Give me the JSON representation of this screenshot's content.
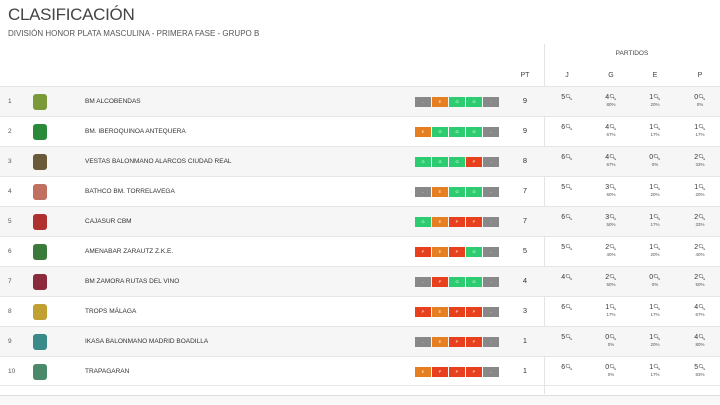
{
  "title": "CLASIFICACIÓN",
  "subtitle": "DIVISIÓN HONOR PLATA MASCULINA - PRIMERA FASE - GRUPO B",
  "headers": {
    "partidos": "PARTIDOS",
    "pt": "PT",
    "j": "J",
    "g": "G",
    "e": "E",
    "p": "P"
  },
  "colors": {
    "G": "#2ecc71",
    "E": "#e67e22",
    "P": "#e8401c",
    "-": "#888888"
  },
  "rows": [
    {
      "pos": "1",
      "team": "BM ALCOBENDAS",
      "form": [
        "-",
        "E",
        "G",
        "G",
        "-"
      ],
      "pt": "9",
      "j": "5",
      "g": "4",
      "gp": "80%",
      "e": "1",
      "ep": "20%",
      "p": "0",
      "pp": "0%",
      "logo": "#7a9a3a"
    },
    {
      "pos": "2",
      "team": "BM. IBEROQUINOA ANTEQUERA",
      "form": [
        "E",
        "G",
        "G",
        "G",
        "-"
      ],
      "pt": "9",
      "j": "6",
      "g": "4",
      "gp": "67%",
      "e": "1",
      "ep": "17%",
      "p": "1",
      "pp": "17%",
      "logo": "#2a8a3a"
    },
    {
      "pos": "3",
      "team": "VESTAS BALONMANO ALARCOS CIUDAD REAL",
      "form": [
        "G",
        "G",
        "G",
        "P",
        "-"
      ],
      "pt": "8",
      "j": "6",
      "g": "4",
      "gp": "67%",
      "e": "0",
      "ep": "0%",
      "p": "2",
      "pp": "33%",
      "logo": "#6a5a3a"
    },
    {
      "pos": "4",
      "team": "BATHCO BM. TORRELAVEGA",
      "form": [
        "-",
        "E",
        "G",
        "G",
        "-"
      ],
      "pt": "7",
      "j": "5",
      "g": "3",
      "gp": "60%",
      "e": "1",
      "ep": "20%",
      "p": "1",
      "pp": "20%",
      "logo": "#c07060"
    },
    {
      "pos": "5",
      "team": "CAJASUR CBM",
      "form": [
        "G",
        "E",
        "P",
        "P",
        "-"
      ],
      "pt": "7",
      "j": "6",
      "g": "3",
      "gp": "50%",
      "e": "1",
      "ep": "17%",
      "p": "2",
      "pp": "33%",
      "logo": "#b03030"
    },
    {
      "pos": "6",
      "team": "AMENABAR ZARAUTZ Z.K.E.",
      "form": [
        "P",
        "E",
        "P",
        "G",
        "-"
      ],
      "pt": "5",
      "j": "5",
      "g": "2",
      "gp": "40%",
      "e": "1",
      "ep": "20%",
      "p": "2",
      "pp": "40%",
      "logo": "#3a7a3a"
    },
    {
      "pos": "7",
      "team": "BM ZAMORA RUTAS DEL VINO",
      "form": [
        "-",
        "P",
        "G",
        "G",
        "-"
      ],
      "pt": "4",
      "j": "4",
      "g": "2",
      "gp": "50%",
      "e": "0",
      "ep": "0%",
      "p": "2",
      "pp": "50%",
      "logo": "#8a2a3a"
    },
    {
      "pos": "8",
      "team": "TROPS MÁLAGA",
      "form": [
        "P",
        "E",
        "P",
        "P",
        "-"
      ],
      "pt": "3",
      "j": "6",
      "g": "1",
      "gp": "17%",
      "e": "1",
      "ep": "17%",
      "p": "4",
      "pp": "67%",
      "logo": "#c0a030"
    },
    {
      "pos": "9",
      "team": "IKASA BALONMANO MADRID BOADILLA",
      "form": [
        "-",
        "E",
        "P",
        "P",
        "-"
      ],
      "pt": "1",
      "j": "5",
      "g": "0",
      "gp": "0%",
      "e": "1",
      "ep": "20%",
      "p": "4",
      "pp": "80%",
      "logo": "#3a8a8a"
    },
    {
      "pos": "10",
      "team": "TRAPAGARAN",
      "form": [
        "E",
        "P",
        "P",
        "P",
        "-"
      ],
      "pt": "1",
      "j": "6",
      "g": "0",
      "gp": "0%",
      "e": "1",
      "ep": "17%",
      "p": "5",
      "pp": "83%",
      "logo": "#4a8a6a"
    }
  ]
}
